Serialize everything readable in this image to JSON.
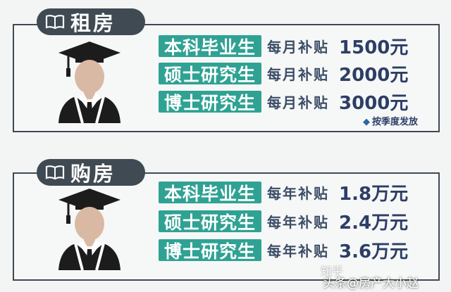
{
  "sections": [
    {
      "title": "租房",
      "rows": [
        {
          "degree": "本科毕业生",
          "period": "每月补贴",
          "amount": "1500元"
        },
        {
          "degree": "硕士研究生",
          "period": "每月补贴",
          "amount": "2000元"
        },
        {
          "degree": "博士研究生",
          "period": "每月补贴",
          "amount": "3000元"
        }
      ],
      "note": "按季度发放"
    },
    {
      "title": "购房",
      "rows": [
        {
          "degree": "本科毕业生",
          "period": "每年补贴",
          "amount": "1.8万元"
        },
        {
          "degree": "硕士研究生",
          "period": "每年补贴",
          "amount": "2.4万元"
        },
        {
          "degree": "博士研究生",
          "period": "每年补贴",
          "amount": "3.6万元"
        }
      ]
    }
  ],
  "watermark": {
    "line1": "知乎",
    "line2": "头条@房产大小赵"
  },
  "colors": {
    "tab": "#3f4a53",
    "degree_bg": "#2fa293",
    "amount_text": "#2d3e66",
    "border": "#3e4a52"
  },
  "icons": [
    "book-icon",
    "graduate-avatar-icon",
    "diamond-bullet-icon"
  ]
}
